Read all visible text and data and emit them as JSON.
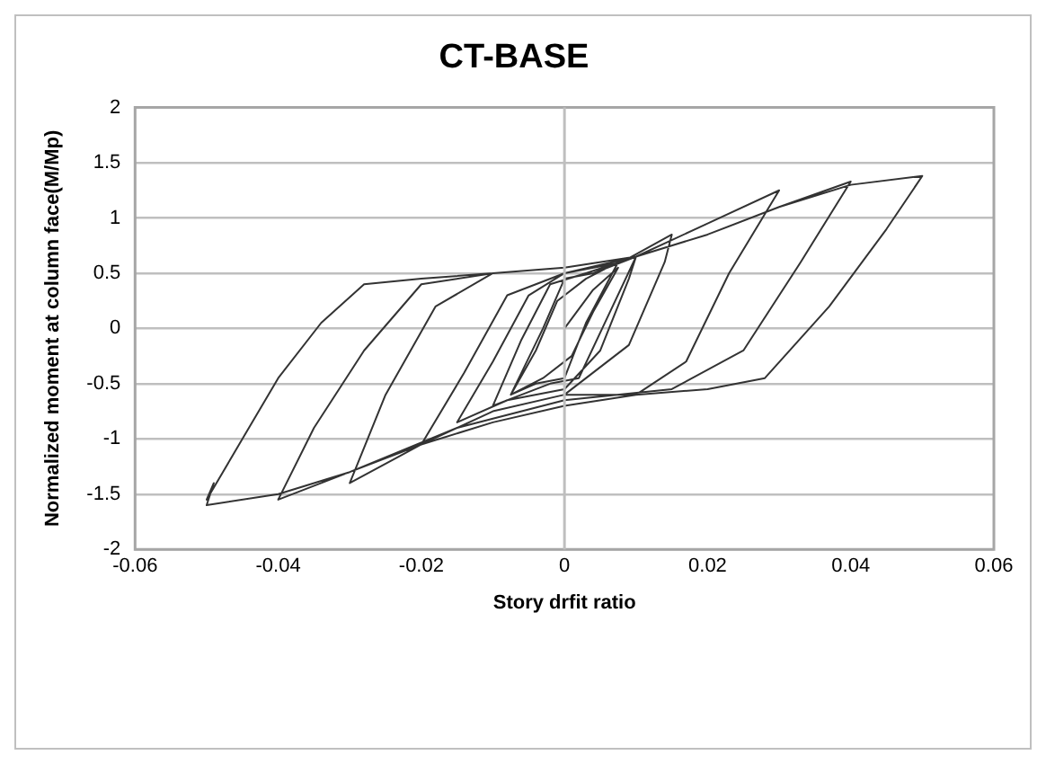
{
  "chart_data": {
    "type": "line",
    "title": "CT-BASE",
    "xlabel": "Story drfit ratio",
    "ylabel": "Normalized moment at column face(M/Mp)",
    "xlim": [
      -0.06,
      0.06
    ],
    "xticks": [
      -0.06,
      -0.04,
      -0.02,
      0,
      0.02,
      0.04,
      0.06
    ],
    "ylim": [
      -2,
      2
    ],
    "yticks": [
      -2,
      -1.5,
      -1,
      -0.5,
      0,
      0.5,
      1,
      1.5,
      2
    ],
    "grid": "y",
    "legend": false,
    "marker": "none",
    "line_style": "solid",
    "ref_lines": [
      {
        "axis": "x",
        "value": 0,
        "color": "#bfbfbf"
      }
    ],
    "series": [
      {
        "color": "#333333",
        "x": [
          0,
          0.004,
          0.0075,
          0.004,
          0.001,
          -0.003,
          -0.0075,
          -0.004,
          -0.001,
          0.003,
          0.0075,
          0.003,
          0,
          -0.004,
          -0.0075,
          -0.003,
          0,
          0.004,
          0.01,
          0.006,
          0.002,
          -0.002,
          -0.01,
          -0.006,
          -0.002,
          0.003,
          0.01,
          0.009,
          0.005,
          0,
          -0.008,
          -0.015,
          -0.01,
          -0.005,
          0,
          0.008,
          0.015,
          0.014,
          0.009,
          0,
          -0.01,
          -0.02,
          -0.014,
          -0.008,
          0,
          0.01,
          0.02,
          0.03,
          0.023,
          0.017,
          0.01,
          0,
          -0.01,
          -0.02,
          -0.03,
          -0.025,
          -0.018,
          -0.01,
          0,
          0.01,
          0.02,
          0.03,
          0.04,
          0.033,
          0.025,
          0.015,
          0,
          -0.015,
          -0.03,
          -0.04,
          -0.035,
          -0.028,
          -0.02,
          -0.01,
          0,
          0.01,
          0.02,
          0.03,
          0.04,
          0.05,
          0.045,
          0.037,
          0.028,
          0.02,
          0.01,
          0,
          -0.01,
          -0.02,
          -0.03,
          -0.04,
          -0.05,
          -0.049,
          -0.05,
          -0.045,
          -0.04,
          -0.034,
          -0.028,
          -0.02,
          -0.01,
          0
        ],
        "values": [
          0,
          0.35,
          0.55,
          0.15,
          -0.25,
          -0.45,
          -0.6,
          -0.2,
          0.25,
          0.45,
          0.6,
          0.05,
          -0.45,
          -0.5,
          -0.6,
          0,
          0.45,
          0.5,
          0.65,
          0.1,
          -0.45,
          -0.5,
          -0.7,
          -0.1,
          0.4,
          0.5,
          0.65,
          0.45,
          -0.2,
          -0.55,
          -0.65,
          -0.85,
          -0.3,
          0.3,
          0.5,
          0.6,
          0.85,
          0.6,
          -0.15,
          -0.6,
          -0.75,
          -1.05,
          -0.4,
          0.3,
          0.5,
          0.65,
          0.95,
          1.25,
          0.5,
          -0.3,
          -0.6,
          -0.6,
          -0.75,
          -1.05,
          -1.4,
          -0.6,
          0.2,
          0.5,
          0.55,
          0.65,
          0.85,
          1.1,
          1.33,
          0.6,
          -0.2,
          -0.55,
          -0.65,
          -0.9,
          -1.3,
          -1.55,
          -0.9,
          -0.2,
          0.4,
          0.5,
          0.55,
          0.65,
          0.85,
          1.1,
          1.3,
          1.38,
          0.9,
          0.2,
          -0.45,
          -0.55,
          -0.6,
          -0.7,
          -0.85,
          -1.05,
          -1.3,
          -1.5,
          -1.6,
          -1.4,
          -1.55,
          -1.0,
          -0.45,
          0.05,
          0.4,
          0.45,
          0.5,
          0.55
        ]
      }
    ]
  }
}
